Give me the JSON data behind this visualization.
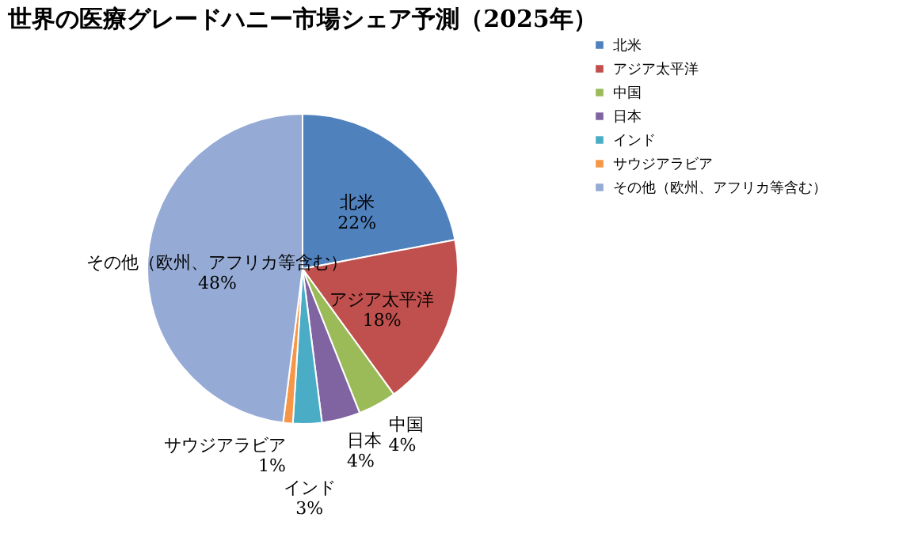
{
  "chart_data": {
    "type": "pie",
    "title": "世界の医療グレードハニー市場シェア予測（2025年）",
    "categories": [
      "北米",
      "アジア太平洋",
      "中国",
      "日本",
      "インド",
      "サウジアラビア",
      "その他（欧州、アフリカ等含む）"
    ],
    "values": [
      22,
      18,
      4,
      4,
      3,
      1,
      48
    ],
    "value_labels": [
      "22%",
      "18%",
      "4%",
      "4%",
      "3%",
      "1%",
      "48%"
    ],
    "colors": [
      "#4f81bd",
      "#c0504d",
      "#9bbb59",
      "#8064a2",
      "#4bacc6",
      "#f79646",
      "#95abd5"
    ],
    "legend": "right"
  }
}
